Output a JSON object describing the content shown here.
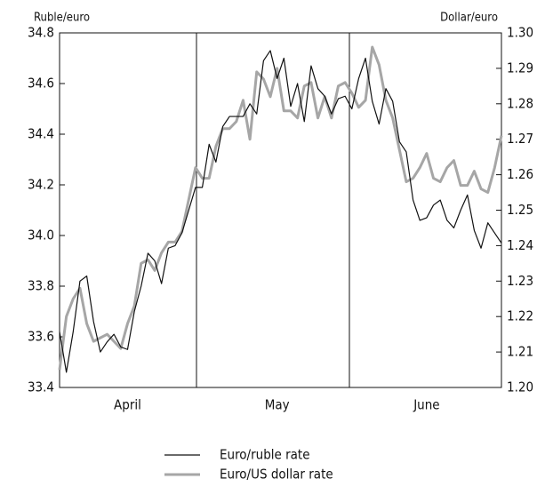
{
  "chart_data": {
    "type": "line",
    "y_label": "Ruble/euro",
    "y2_label": "Dollar/euro",
    "categories": [
      null,
      null,
      null,
      null,
      null,
      null,
      null,
      null,
      null,
      null,
      "April",
      null,
      null,
      null,
      null,
      null,
      null,
      null,
      null,
      null,
      null,
      null,
      null,
      null,
      null,
      null,
      null,
      null,
      null,
      null,
      null,
      null,
      "May",
      null,
      null,
      null,
      null,
      null,
      null,
      null,
      null,
      null,
      null,
      null,
      null,
      null,
      null,
      null,
      null,
      null,
      null,
      null,
      null,
      null,
      "June",
      null,
      null,
      null,
      null,
      null,
      null,
      null,
      null,
      null,
      null,
      null
    ],
    "ylim": [
      33.4,
      34.8
    ],
    "yticks": [
      33.4,
      33.6,
      33.8,
      {
        "value": 34,
        "label": "34.0"
      },
      34.2,
      34.4,
      34.6,
      34.8
    ],
    "y2lim": [
      1.2,
      1.3
    ],
    "y2ticks": [
      {
        "value": 1.2,
        "label": "1.20"
      },
      1.21,
      1.22,
      1.23,
      1.24,
      1.25,
      1.26,
      1.27,
      1.28,
      1.29,
      {
        "value": 1.3,
        "label": "1.30"
      }
    ],
    "series": [
      {
        "name": "Euro/ruble rate",
        "color": "#111111",
        "values": [
          33.62,
          33.46,
          33.62,
          33.82,
          33.84,
          33.66,
          33.54,
          33.58,
          33.61,
          33.56,
          33.55,
          33.7,
          33.8,
          33.93,
          33.9,
          33.81,
          33.95,
          33.96,
          34.01,
          34.1,
          34.19,
          34.19,
          34.36,
          34.29,
          34.43,
          34.47,
          34.47,
          34.47,
          34.52,
          34.48,
          34.69,
          34.73,
          34.62,
          34.7,
          34.51,
          34.6,
          34.45,
          34.67,
          34.58,
          34.55,
          34.48,
          34.54,
          34.55,
          34.5,
          34.62,
          34.7,
          34.53,
          34.44,
          34.58,
          34.53,
          34.37,
          34.33,
          34.14,
          34.06,
          34.07,
          34.12,
          34.14,
          34.06,
          34.03,
          34.1,
          34.16,
          34.02,
          33.95,
          34.05,
          34.01,
          33.97
        ]
      },
      {
        "name": "Euro/US dollar rate",
        "color": "#a6a6a6",
        "axis": "y2",
        "values": [
          1.205,
          1.22,
          1.225,
          1.228,
          1.218,
          1.213,
          1.214,
          1.215,
          1.213,
          1.211,
          1.218,
          1.223,
          1.235,
          1.236,
          1.233,
          1.238,
          1.241,
          1.241,
          1.244,
          1.253,
          1.262,
          1.259,
          1.259,
          1.268,
          1.273,
          1.273,
          1.275,
          1.281,
          1.27,
          1.289,
          1.287,
          1.282,
          1.29,
          1.278,
          1.278,
          1.276,
          1.285,
          1.286,
          1.276,
          1.282,
          1.276,
          1.285,
          1.286,
          1.283,
          1.279,
          1.281,
          1.296,
          1.291,
          1.281,
          1.276,
          1.267,
          1.258,
          1.259,
          1.262,
          1.266,
          1.259,
          1.258,
          1.262,
          1.264,
          1.257,
          1.257,
          1.261,
          1.256,
          1.255,
          1.262,
          1.271
        ]
      }
    ]
  }
}
